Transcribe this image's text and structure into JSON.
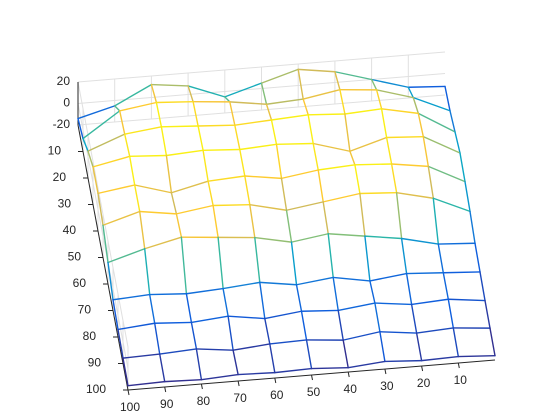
{
  "chart_data": {
    "type": "mesh",
    "x": [
      0,
      10,
      20,
      30,
      40,
      50,
      60,
      70,
      80,
      90,
      100
    ],
    "y": [
      0,
      10,
      20,
      30,
      40,
      50,
      60,
      70,
      80,
      90,
      100
    ],
    "z": [
      [
        -12,
        -10,
        0,
        10,
        15,
        5,
        -5,
        8,
        12,
        -5,
        -14
      ],
      [
        -10,
        5,
        15,
        18,
        12,
        10,
        15,
        18,
        20,
        15,
        -8
      ],
      [
        -5,
        15,
        22,
        20,
        22,
        20,
        18,
        20,
        22,
        18,
        5
      ],
      [
        0,
        18,
        20,
        10,
        20,
        22,
        20,
        22,
        20,
        22,
        15
      ],
      [
        -2,
        15,
        20,
        22,
        20,
        15,
        20,
        18,
        10,
        20,
        15
      ],
      [
        -5,
        10,
        18,
        20,
        15,
        10,
        18,
        20,
        15,
        20,
        10
      ],
      [
        -10,
        -8,
        0,
        5,
        10,
        5,
        12,
        15,
        18,
        10,
        0
      ],
      [
        -12,
        -10,
        -8,
        -12,
        -6,
        -10,
        -5,
        -8,
        -10,
        -8,
        -10
      ],
      [
        -14,
        -10,
        -12,
        -8,
        -12,
        -10,
        -14,
        -9,
        -12,
        -10,
        -13
      ],
      [
        -15,
        -12,
        -14,
        -10,
        -15,
        -12,
        -13,
        -16,
        -12,
        -14,
        -15
      ],
      [
        -16,
        -14,
        -15,
        -13,
        -16,
        -14,
        -15,
        -14,
        -16,
        -15,
        -16
      ]
    ],
    "xlim": [
      0,
      100
    ],
    "ylim": [
      0,
      100
    ],
    "zlim": [
      -20,
      20
    ],
    "xticks": [
      10,
      20,
      30,
      40,
      50,
      60,
      70,
      80,
      90,
      100
    ],
    "yticks": [
      10,
      20,
      30,
      40,
      50,
      60,
      70,
      80,
      90,
      100
    ],
    "zticks": [
      -20,
      0,
      20
    ],
    "grid": true,
    "colormap": [
      "#352a87",
      "#0f5cdd",
      "#1481d6",
      "#06a4ca",
      "#2eb7a4",
      "#87bf77",
      "#d1bb59",
      "#fec832",
      "#f9fb0e"
    ]
  }
}
